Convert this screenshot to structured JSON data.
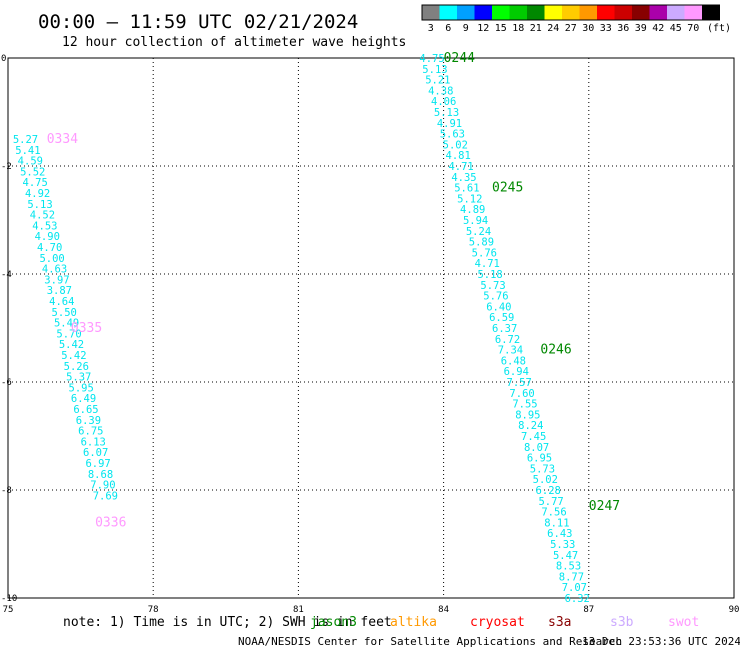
{
  "header": {
    "title": "00:00 — 11:59 UTC 02/21/2024",
    "subtitle": "12 hour collection of altimeter wave heights"
  },
  "legend": {
    "unit": "(ft)",
    "items": [
      {
        "label": "3",
        "color": "#808080"
      },
      {
        "label": "6",
        "color": "#00ffff"
      },
      {
        "label": "9",
        "color": "#00a0ff"
      },
      {
        "label": "12",
        "color": "#0000ff"
      },
      {
        "label": "15",
        "color": "#00ff00"
      },
      {
        "label": "18",
        "color": "#00cc00"
      },
      {
        "label": "21",
        "color": "#008800"
      },
      {
        "label": "24",
        "color": "#ffff00"
      },
      {
        "label": "27",
        "color": "#ffcc00"
      },
      {
        "label": "30",
        "color": "#ff9900"
      },
      {
        "label": "33",
        "color": "#ff0000"
      },
      {
        "label": "36",
        "color": "#cc0000"
      },
      {
        "label": "39",
        "color": "#880000"
      },
      {
        "label": "42",
        "color": "#aa00aa"
      },
      {
        "label": "45",
        "color": "#ccaaff"
      },
      {
        "label": "70",
        "color": "#ff99ff"
      },
      {
        "label": "",
        "color": "#000000"
      }
    ]
  },
  "footer": {
    "note": "note: 1) Time is in UTC; 2) SWH is in feet",
    "credit": "NOAA/NESDIS Center for Satellite Applications and Research",
    "timestamp": "13 Dec 23:53:36 UTC 2024",
    "satellites": [
      {
        "label": "jason3",
        "color": "#008800"
      },
      {
        "label": "altika",
        "color": "#ff9900"
      },
      {
        "label": "cryosat",
        "color": "#ff0000"
      },
      {
        "label": "s3a",
        "color": "#880000"
      },
      {
        "label": "s3b",
        "color": "#ccaaff"
      },
      {
        "label": "swot",
        "color": "#ff99ff"
      }
    ]
  },
  "chart_data": {
    "type": "scatter",
    "xlim": [
      75,
      90
    ],
    "ylim": [
      -10,
      0
    ],
    "xticks": [
      75,
      78,
      81,
      84,
      87,
      90
    ],
    "yticks": [
      0,
      -2,
      -4,
      -6,
      -8,
      -10
    ],
    "grid": true,
    "value_color": "#00e5ee",
    "tracks": [
      {
        "passes": [
          {
            "label": "0244",
            "color": "#008800",
            "x": 84.0,
            "y": 0.0
          },
          {
            "label": "0245",
            "color": "#008800",
            "x": 85.0,
            "y": -2.4
          },
          {
            "label": "0246",
            "color": "#008800",
            "x": 86.0,
            "y": -5.4
          },
          {
            "label": "0247",
            "color": "#008800",
            "x": 87.0,
            "y": -8.3
          }
        ],
        "points": [
          {
            "x": 83.5,
            "y": 0.0,
            "v": "4.75"
          },
          {
            "x": 83.56,
            "y": -0.2,
            "v": "5.13"
          },
          {
            "x": 83.62,
            "y": -0.4,
            "v": "5.21"
          },
          {
            "x": 83.68,
            "y": -0.6,
            "v": "4.38"
          },
          {
            "x": 83.74,
            "y": -0.8,
            "v": "4.06"
          },
          {
            "x": 83.8,
            "y": -1.0,
            "v": "5.13"
          },
          {
            "x": 83.86,
            "y": -1.2,
            "v": "4.91"
          },
          {
            "x": 83.92,
            "y": -1.4,
            "v": "5.63"
          },
          {
            "x": 83.98,
            "y": -1.6,
            "v": "5.02"
          },
          {
            "x": 84.04,
            "y": -1.8,
            "v": "4.81"
          },
          {
            "x": 84.1,
            "y": -2.0,
            "v": "4.71"
          },
          {
            "x": 84.16,
            "y": -2.2,
            "v": "4.35"
          },
          {
            "x": 84.22,
            "y": -2.4,
            "v": "5.61"
          },
          {
            "x": 84.28,
            "y": -2.6,
            "v": "5.12"
          },
          {
            "x": 84.34,
            "y": -2.8,
            "v": "4.89"
          },
          {
            "x": 84.4,
            "y": -3.0,
            "v": "5.94"
          },
          {
            "x": 84.46,
            "y": -3.2,
            "v": "5.24"
          },
          {
            "x": 84.52,
            "y": -3.4,
            "v": "5.89"
          },
          {
            "x": 84.58,
            "y": -3.6,
            "v": "5.76"
          },
          {
            "x": 84.64,
            "y": -3.8,
            "v": "4.71"
          },
          {
            "x": 84.7,
            "y": -4.0,
            "v": "5.18"
          },
          {
            "x": 84.76,
            "y": -4.2,
            "v": "5.73"
          },
          {
            "x": 84.82,
            "y": -4.4,
            "v": "5.76"
          },
          {
            "x": 84.88,
            "y": -4.6,
            "v": "6.40"
          },
          {
            "x": 84.94,
            "y": -4.8,
            "v": "6.59"
          },
          {
            "x": 85.0,
            "y": -5.0,
            "v": "6.37"
          },
          {
            "x": 85.06,
            "y": -5.2,
            "v": "6.72"
          },
          {
            "x": 85.12,
            "y": -5.4,
            "v": "7.34"
          },
          {
            "x": 85.18,
            "y": -5.6,
            "v": "6.48"
          },
          {
            "x": 85.24,
            "y": -5.8,
            "v": "6.94"
          },
          {
            "x": 85.3,
            "y": -6.0,
            "v": "7.57"
          },
          {
            "x": 85.36,
            "y": -6.2,
            "v": "7.60"
          },
          {
            "x": 85.42,
            "y": -6.4,
            "v": "7.55"
          },
          {
            "x": 85.48,
            "y": -6.6,
            "v": "8.95"
          },
          {
            "x": 85.54,
            "y": -6.8,
            "v": "8.24"
          },
          {
            "x": 85.6,
            "y": -7.0,
            "v": "7.45"
          },
          {
            "x": 85.66,
            "y": -7.2,
            "v": "8.07"
          },
          {
            "x": 85.72,
            "y": -7.4,
            "v": "6.95"
          },
          {
            "x": 85.78,
            "y": -7.6,
            "v": "5.73"
          },
          {
            "x": 85.84,
            "y": -7.8,
            "v": "5.02"
          },
          {
            "x": 85.9,
            "y": -8.0,
            "v": "6.28"
          },
          {
            "x": 85.96,
            "y": -8.2,
            "v": "5.77"
          },
          {
            "x": 86.02,
            "y": -8.4,
            "v": "7.56"
          },
          {
            "x": 86.08,
            "y": -8.6,
            "v": "8.11"
          },
          {
            "x": 86.14,
            "y": -8.8,
            "v": "6.43"
          },
          {
            "x": 86.2,
            "y": -9.0,
            "v": "5.33"
          },
          {
            "x": 86.26,
            "y": -9.2,
            "v": "5.47"
          },
          {
            "x": 86.32,
            "y": -9.4,
            "v": "8.53"
          },
          {
            "x": 86.38,
            "y": -9.6,
            "v": "8.77"
          },
          {
            "x": 86.44,
            "y": -9.8,
            "v": "7.07"
          },
          {
            "x": 86.5,
            "y": -10.0,
            "v": "6.32"
          }
        ]
      },
      {
        "passes": [
          {
            "label": "0334",
            "color": "#ff99ff",
            "x": 75.8,
            "y": -1.5
          },
          {
            "label": "0335",
            "color": "#ff99ff",
            "x": 76.3,
            "y": -5.0
          },
          {
            "label": "0336",
            "color": "#ff99ff",
            "x": 76.8,
            "y": -8.6
          }
        ],
        "points": [
          {
            "x": 75.1,
            "y": -1.5,
            "v": "5.27"
          },
          {
            "x": 75.15,
            "y": -1.7,
            "v": "5.41"
          },
          {
            "x": 75.2,
            "y": -1.9,
            "v": "4.59"
          },
          {
            "x": 75.25,
            "y": -2.1,
            "v": "5.52"
          },
          {
            "x": 75.3,
            "y": -2.3,
            "v": "4.75"
          },
          {
            "x": 75.35,
            "y": -2.5,
            "v": "4.92"
          },
          {
            "x": 75.4,
            "y": -2.7,
            "v": "5.13"
          },
          {
            "x": 75.45,
            "y": -2.9,
            "v": "4.52"
          },
          {
            "x": 75.5,
            "y": -3.1,
            "v": "4.53"
          },
          {
            "x": 75.55,
            "y": -3.3,
            "v": "4.90"
          },
          {
            "x": 75.6,
            "y": -3.5,
            "v": "4.70"
          },
          {
            "x": 75.65,
            "y": -3.7,
            "v": "5.00"
          },
          {
            "x": 75.7,
            "y": -3.9,
            "v": "4.63"
          },
          {
            "x": 75.75,
            "y": -4.1,
            "v": "3.97"
          },
          {
            "x": 75.8,
            "y": -4.3,
            "v": "3.87"
          },
          {
            "x": 75.85,
            "y": -4.5,
            "v": "4.64"
          },
          {
            "x": 75.9,
            "y": -4.7,
            "v": "5.50"
          },
          {
            "x": 75.95,
            "y": -4.9,
            "v": "5.49"
          },
          {
            "x": 76.0,
            "y": -5.1,
            "v": "5.70"
          },
          {
            "x": 76.05,
            "y": -5.3,
            "v": "5.42"
          },
          {
            "x": 76.1,
            "y": -5.5,
            "v": "5.42"
          },
          {
            "x": 76.15,
            "y": -5.7,
            "v": "5.26"
          },
          {
            "x": 76.2,
            "y": -5.9,
            "v": "5.37"
          },
          {
            "x": 76.25,
            "y": -6.1,
            "v": "5.95"
          },
          {
            "x": 76.3,
            "y": -6.3,
            "v": "6.49"
          },
          {
            "x": 76.35,
            "y": -6.5,
            "v": "6.65"
          },
          {
            "x": 76.4,
            "y": -6.7,
            "v": "6.39"
          },
          {
            "x": 76.45,
            "y": -6.9,
            "v": "6.75"
          },
          {
            "x": 76.5,
            "y": -7.1,
            "v": "6.13"
          },
          {
            "x": 76.55,
            "y": -7.3,
            "v": "6.07"
          },
          {
            "x": 76.6,
            "y": -7.5,
            "v": "6.97"
          },
          {
            "x": 76.65,
            "y": -7.7,
            "v": "8.68"
          },
          {
            "x": 76.7,
            "y": -7.9,
            "v": "7.90"
          },
          {
            "x": 76.75,
            "y": -8.1,
            "v": "7.69"
          }
        ]
      }
    ]
  }
}
